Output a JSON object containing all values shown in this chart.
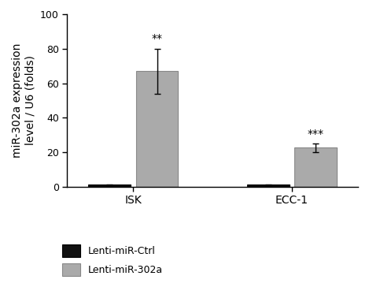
{
  "groups": [
    "ISK",
    "ECC-1"
  ],
  "conditions": [
    "Lenti-miR-Ctrl",
    "Lenti-miR-302a"
  ],
  "values": {
    "ISK": [
      1.0,
      67.0
    ],
    "ECC-1": [
      1.0,
      22.5
    ]
  },
  "errors": {
    "ISK": [
      0.3,
      13.0
    ],
    "ECC-1": [
      0.3,
      2.5
    ]
  },
  "bar_colors": [
    "#111111",
    "#aaaaaa"
  ],
  "bar_edge_colors": [
    "#000000",
    "#888888"
  ],
  "significance": {
    "ISK": "**",
    "ECC-1": "***"
  },
  "ylabel": "miR-302a expression\nlevel / U6 (folds)",
  "ylim": [
    0,
    100
  ],
  "yticks": [
    0,
    20,
    40,
    60,
    80,
    100
  ],
  "background_color": "#ffffff",
  "bar_width": 0.32,
  "legend_labels": [
    "Lenti-miR-Ctrl",
    "Lenti-miR-302a"
  ],
  "legend_colors": [
    "#111111",
    "#aaaaaa"
  ],
  "legend_edge_colors": [
    "#000000",
    "#888888"
  ],
  "sig_fontsize": 10,
  "axis_fontsize": 10,
  "tick_fontsize": 9,
  "legend_fontsize": 9
}
